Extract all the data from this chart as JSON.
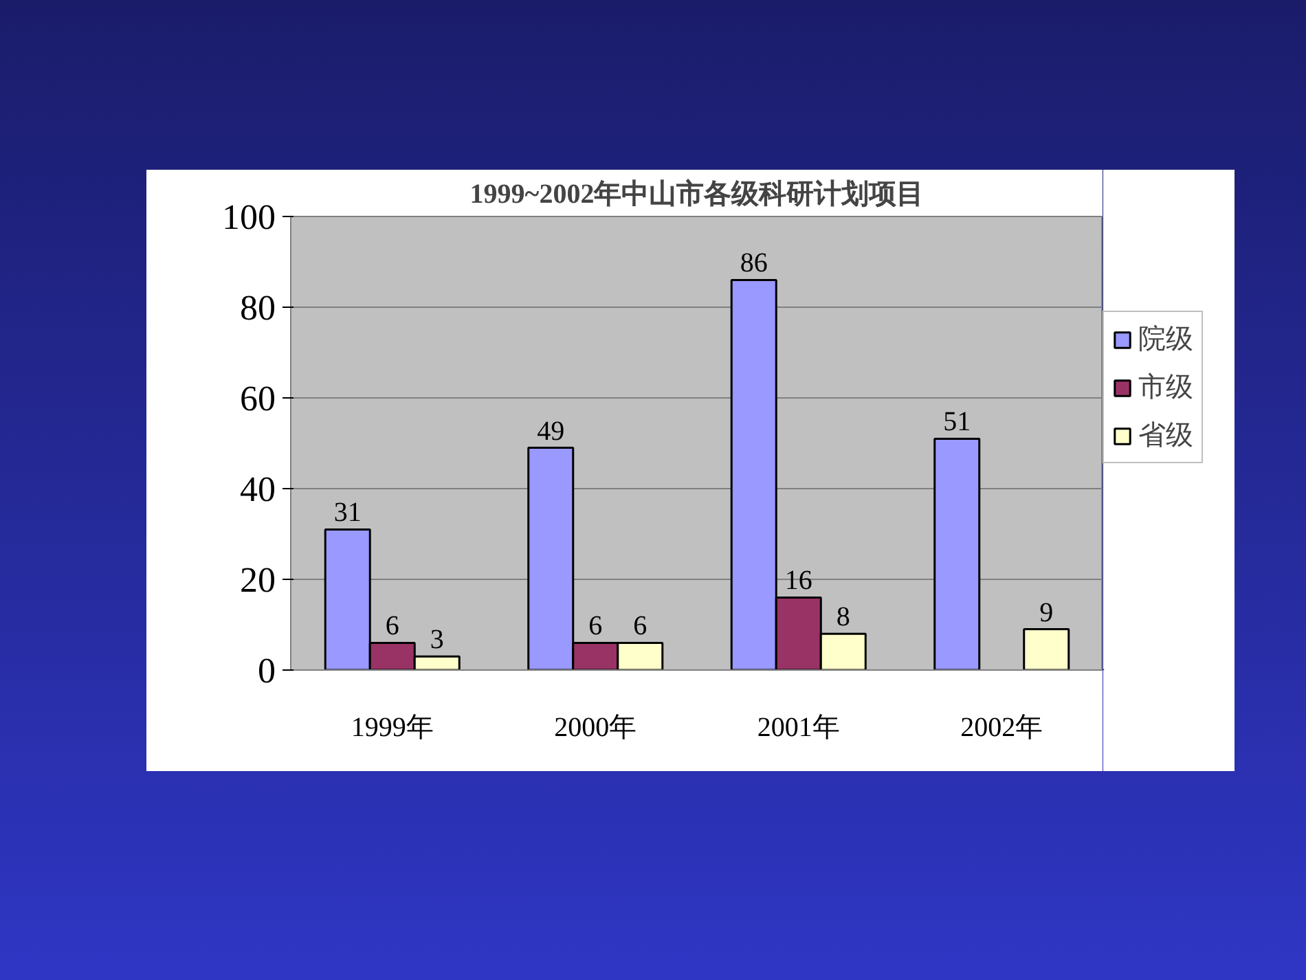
{
  "chart_data": {
    "type": "bar",
    "title": "1999~2002年中山市各级科研计划项目",
    "categories": [
      "1999年",
      "2000年",
      "2001年",
      "2002年"
    ],
    "series": [
      {
        "name": "院级",
        "color": "#9999ff",
        "values": [
          31,
          49,
          86,
          51
        ]
      },
      {
        "name": "市级",
        "color": "#993366",
        "values": [
          6,
          6,
          16,
          null
        ]
      },
      {
        "name": "省级",
        "color": "#ffffcc",
        "values": [
          3,
          6,
          8,
          9
        ]
      }
    ],
    "ylim": [
      0,
      100
    ],
    "yticks": [
      0,
      20,
      40,
      60,
      80,
      100
    ],
    "grid": "y",
    "legend": "right",
    "data_labels": true
  }
}
